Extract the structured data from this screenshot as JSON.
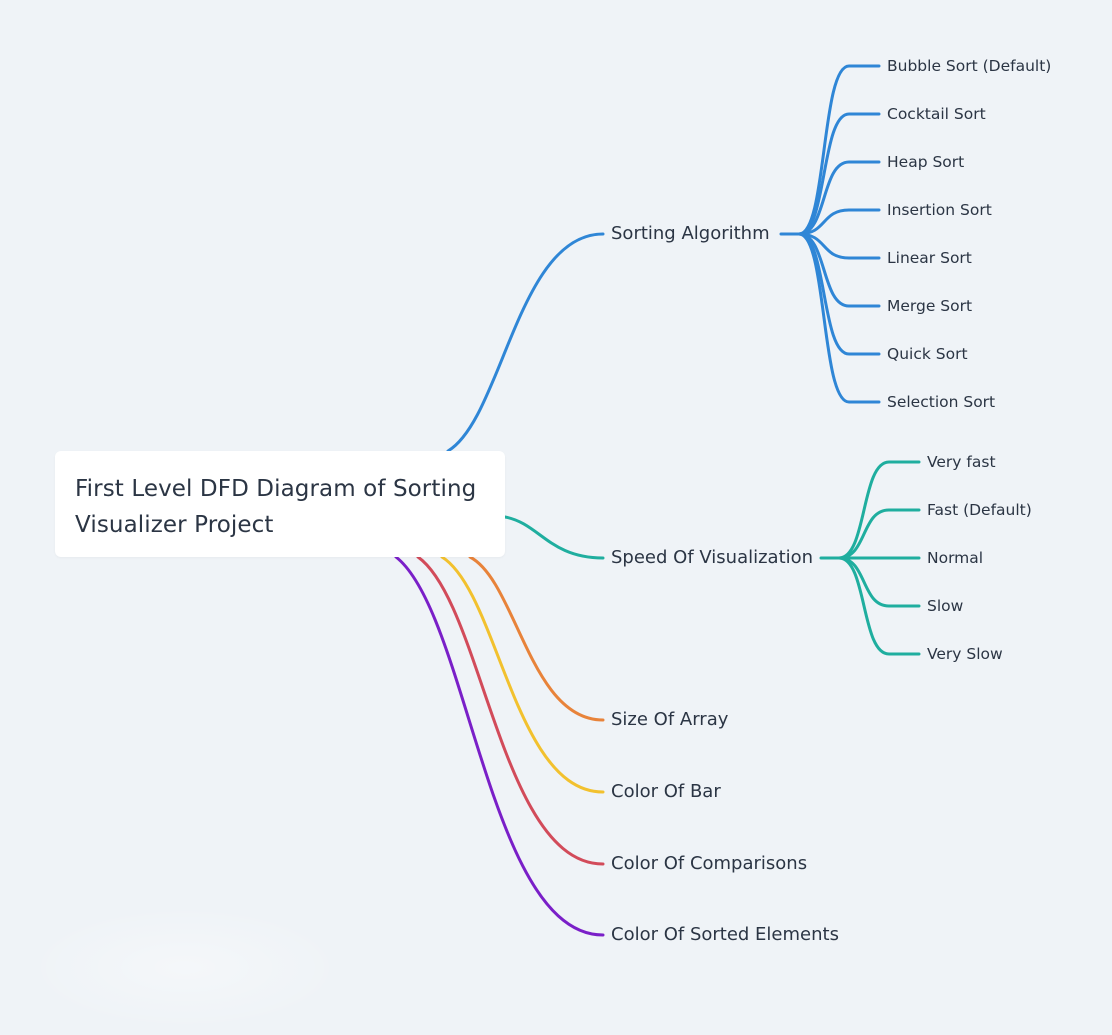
{
  "root": {
    "title_line1": "First Level DFD Diagram of Sorting",
    "title_line2": "Visualizer Project"
  },
  "branches": [
    {
      "label": "Sorting Algorithm",
      "color": "#2f86d6",
      "children": [
        "Bubble Sort (Default)",
        "Cocktail Sort",
        "Heap Sort",
        "Insertion Sort",
        "Linear Sort",
        "Merge Sort",
        "Quick Sort",
        "Selection Sort"
      ]
    },
    {
      "label": "Speed Of Visualization",
      "color": "#1fae9f",
      "children": [
        "Very fast",
        "Fast (Default)",
        "Normal",
        "Slow",
        "Very Slow"
      ]
    },
    {
      "label": "Size Of Array",
      "color": "#e8833a",
      "children": []
    },
    {
      "label": "Color Of Bar",
      "color": "#f2c12e",
      "children": []
    },
    {
      "label": "Color Of Comparisons",
      "color": "#d24b5a",
      "children": []
    },
    {
      "label": "Color Of Sorted Elements",
      "color": "#7a1fc8",
      "children": []
    }
  ]
}
